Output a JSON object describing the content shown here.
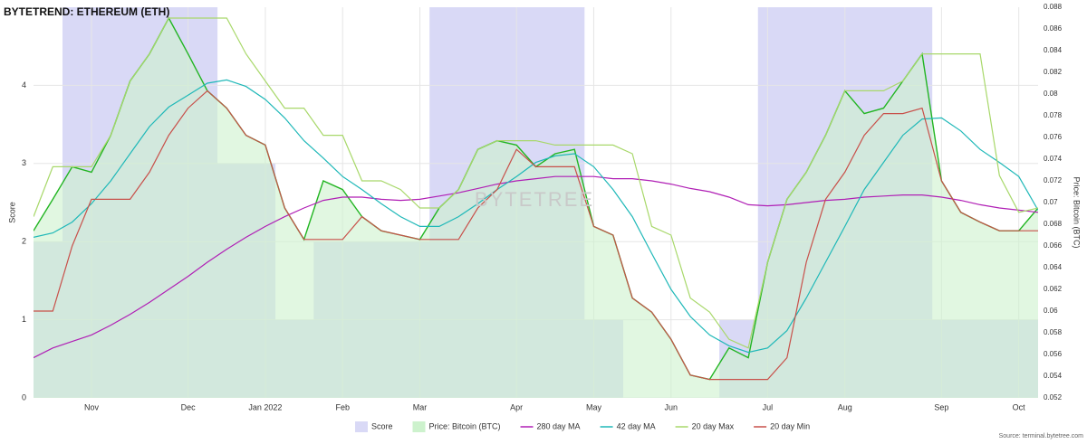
{
  "chart_data": {
    "type": "combo",
    "title": "BYTETREND: ETHEREUM (ETH)",
    "watermark": "BYTETREE",
    "source": "Source: terminal.bytetree.com",
    "ylabel": "Score",
    "y2label": "Price: Bitcoin (BTC)",
    "categories": [
      null,
      null,
      null,
      "Nov",
      null,
      null,
      null,
      null,
      "Dec",
      null,
      null,
      null,
      "Jan 2022",
      null,
      null,
      null,
      "Feb",
      null,
      null,
      null,
      "Mar",
      null,
      null,
      null,
      null,
      "Apr",
      null,
      null,
      null,
      "May",
      null,
      null,
      null,
      "Jun",
      null,
      null,
      null,
      null,
      "Jul",
      null,
      null,
      null,
      "Aug",
      null,
      null,
      null,
      null,
      "Sep",
      null,
      null,
      null,
      "Oct",
      null
    ],
    "ylim": [
      0,
      5
    ],
    "yticks": [
      0,
      1,
      2,
      3,
      4
    ],
    "y2lim": [
      0.052,
      0.088
    ],
    "y2ticks": [
      0.052,
      0.054,
      0.056,
      0.058,
      0.06,
      0.062,
      0.064,
      0.066,
      0.068,
      0.07,
      0.072,
      0.074,
      0.076,
      0.078,
      0.08,
      0.082,
      0.084,
      0.086,
      0.088
    ],
    "grid": true,
    "legend": "bottom",
    "series": [
      {
        "name": "Score",
        "type": "bar",
        "color": "#d9d9f6",
        "values": [
          2,
          2,
          5,
          5,
          5,
          5,
          5,
          5,
          5,
          5,
          3,
          3,
          3,
          1,
          1,
          2,
          2,
          2,
          2,
          2,
          2,
          5,
          5,
          5,
          5,
          5,
          5,
          5,
          5,
          1,
          1,
          0,
          0,
          0,
          0,
          0,
          1,
          1,
          5,
          5,
          5,
          5,
          5,
          5,
          5,
          5,
          5,
          1,
          1,
          1,
          1,
          1,
          1
        ]
      },
      {
        "name": "Price: Bitcoin (BTC)",
        "type": "area",
        "axis": "y2",
        "color": "#22b522",
        "fill": "#cdf2cd",
        "values": [
          0.0674,
          0.0703,
          0.0733,
          0.0728,
          0.0762,
          0.0812,
          0.0837,
          0.087,
          0.0837,
          0.0803,
          0.0787,
          0.0762,
          0.0753,
          0.0695,
          0.0666,
          0.072,
          0.0712,
          0.0687,
          0.0674,
          0.067,
          0.0666,
          0.0695,
          0.0712,
          0.0749,
          0.0757,
          0.0753,
          0.0733,
          0.0745,
          0.0749,
          0.0678,
          0.067,
          0.0612,
          0.0599,
          0.0574,
          0.0541,
          0.0537,
          0.0566,
          0.0557,
          0.0645,
          0.0703,
          0.0728,
          0.0762,
          0.0803,
          0.0782,
          0.0787,
          0.0812,
          0.0837,
          0.072,
          0.0691,
          0.0682,
          0.0674,
          0.0674,
          0.0695
        ]
      },
      {
        "name": "280 day MA",
        "type": "line",
        "axis": "y2",
        "color": "#b01fb5",
        "values": [
          0.0557,
          0.0566,
          0.0572,
          0.0578,
          0.0587,
          0.0597,
          0.0608,
          0.062,
          0.0632,
          0.0645,
          0.0657,
          0.0668,
          0.0678,
          0.0687,
          0.0695,
          0.0702,
          0.0705,
          0.0705,
          0.0703,
          0.0702,
          0.0703,
          0.0706,
          0.0709,
          0.0713,
          0.0717,
          0.072,
          0.0722,
          0.0724,
          0.0724,
          0.0724,
          0.0722,
          0.0722,
          0.072,
          0.0717,
          0.0713,
          0.071,
          0.0705,
          0.0698,
          0.0697,
          0.0698,
          0.07,
          0.0702,
          0.0703,
          0.0705,
          0.0706,
          0.0707,
          0.0707,
          0.0705,
          0.0702,
          0.0698,
          0.0695,
          0.0693,
          0.0691
        ]
      },
      {
        "name": "42 day MA",
        "type": "line",
        "axis": "y2",
        "color": "#1fb8b8",
        "values": [
          0.0668,
          0.0672,
          0.0682,
          0.0699,
          0.072,
          0.0745,
          0.077,
          0.0788,
          0.0799,
          0.081,
          0.0813,
          0.0807,
          0.0795,
          0.0778,
          0.0757,
          0.0741,
          0.0724,
          0.0712,
          0.0699,
          0.0687,
          0.0678,
          0.0678,
          0.0687,
          0.0699,
          0.0712,
          0.0724,
          0.0737,
          0.0743,
          0.0745,
          0.0733,
          0.0712,
          0.0687,
          0.0653,
          0.062,
          0.0595,
          0.0578,
          0.0568,
          0.0562,
          0.0566,
          0.0582,
          0.0612,
          0.0645,
          0.0678,
          0.0712,
          0.0737,
          0.0762,
          0.0777,
          0.0778,
          0.0766,
          0.0749,
          0.0737,
          0.0724,
          0.0693
        ]
      },
      {
        "name": "20 day Max",
        "type": "line",
        "axis": "y2",
        "color": "#a8d86a",
        "values": [
          0.0687,
          0.0733,
          0.0733,
          0.0733,
          0.0762,
          0.0812,
          0.0837,
          0.087,
          0.087,
          0.087,
          0.087,
          0.0837,
          0.0812,
          0.0787,
          0.0787,
          0.0762,
          0.0762,
          0.072,
          0.072,
          0.0712,
          0.0695,
          0.0695,
          0.0712,
          0.0749,
          0.0757,
          0.0757,
          0.0757,
          0.0753,
          0.0753,
          0.0753,
          0.0753,
          0.0745,
          0.0678,
          0.067,
          0.0612,
          0.0599,
          0.0574,
          0.0566,
          0.0645,
          0.0703,
          0.0728,
          0.0762,
          0.0803,
          0.0803,
          0.0803,
          0.0812,
          0.0837,
          0.0837,
          0.0837,
          0.0837,
          0.0725,
          0.0691,
          0.0695
        ]
      },
      {
        "name": "20 day Min",
        "type": "line",
        "axis": "y2",
        "color": "#c8504a",
        "values": [
          0.06,
          0.06,
          0.066,
          0.0703,
          0.0703,
          0.0703,
          0.0728,
          0.0762,
          0.0787,
          0.0803,
          0.0787,
          0.0762,
          0.0753,
          0.0695,
          0.0666,
          0.0666,
          0.0666,
          0.0687,
          0.0674,
          0.067,
          0.0666,
          0.0666,
          0.0666,
          0.0695,
          0.0712,
          0.0749,
          0.0733,
          0.0733,
          0.0733,
          0.0678,
          0.067,
          0.0612,
          0.0599,
          0.0574,
          0.0541,
          0.0537,
          0.0537,
          0.0537,
          0.0537,
          0.0557,
          0.0645,
          0.0703,
          0.0728,
          0.0762,
          0.0782,
          0.0782,
          0.0787,
          0.072,
          0.0691,
          0.0682,
          0.0674,
          0.0674,
          0.0674
        ]
      }
    ]
  }
}
